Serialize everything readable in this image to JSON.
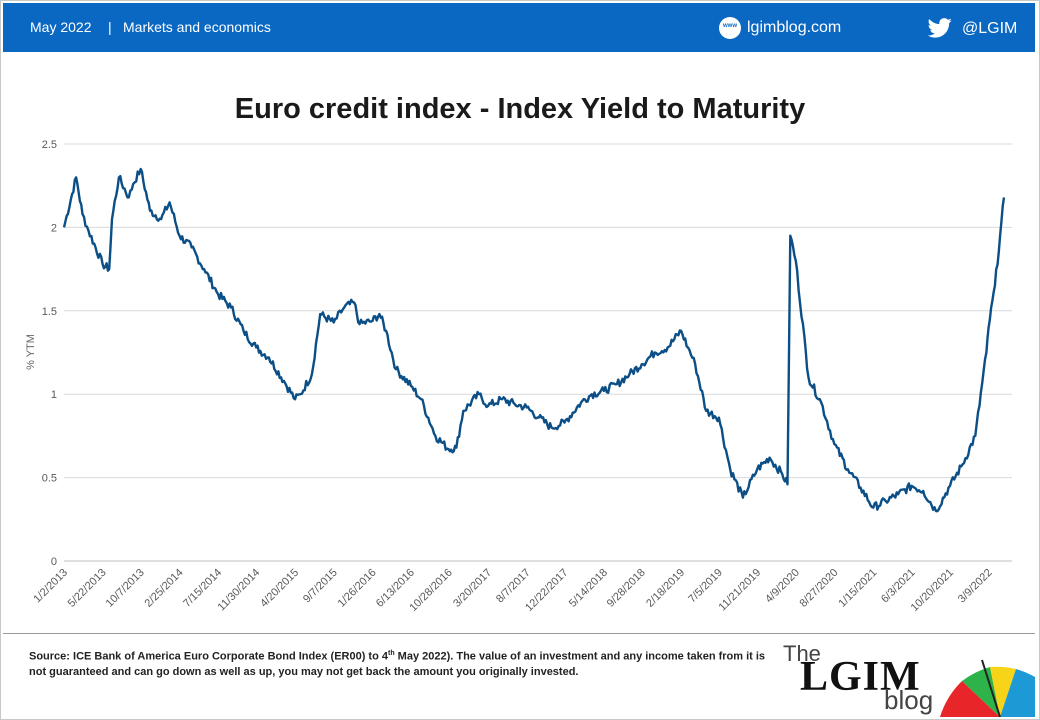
{
  "header": {
    "date": "May 2022",
    "separator": "|",
    "category": "Markets and economics",
    "website": "lgimblog.com",
    "website_icon_text": "www",
    "twitter_handle": "@LGIM"
  },
  "colors": {
    "header_bg": "#0a68c3",
    "series": "#0b4f86",
    "grid": "#d9d9d9"
  },
  "chart_data": {
    "type": "line",
    "title": "Euro credit index - Index Yield to Maturity",
    "ylabel": "% YTM",
    "xlabel": "",
    "ylim": [
      0,
      2.5
    ],
    "yticks": [
      0,
      0.5,
      1,
      1.5,
      2,
      2.5
    ],
    "grid": "horizontal",
    "legend": "none",
    "x_tick_labels": [
      "1/2/2013",
      "5/22/2013",
      "10/7/2013",
      "2/25/2014",
      "7/15/2014",
      "11/30/2014",
      "4/20/2015",
      "9/7/2015",
      "1/26/2016",
      "6/13/2016",
      "10/28/2016",
      "3/20/2017",
      "8/7/2017",
      "12/22/2017",
      "5/14/2018",
      "9/28/2018",
      "2/18/2019",
      "7/5/2019",
      "11/21/2019",
      "4/9/2020",
      "8/27/2020",
      "1/15/2021",
      "6/3/2021",
      "10/20/2021",
      "3/9/2022"
    ],
    "series": [
      {
        "x": [
          "2013-01-02",
          "2013-02-15",
          "2013-03-10",
          "2013-04-01",
          "2013-05-22",
          "2013-06-15",
          "2013-06-25",
          "2013-07-20",
          "2013-08-25",
          "2013-09-10",
          "2013-10-07",
          "2013-11-10",
          "2013-12-20",
          "2014-01-20",
          "2014-02-25",
          "2014-04-10",
          "2014-05-25",
          "2014-07-15",
          "2014-08-31",
          "2014-10-15",
          "2014-11-30",
          "2015-01-15",
          "2015-03-10",
          "2015-04-20",
          "2015-05-10",
          "2015-06-20",
          "2015-07-20",
          "2015-09-07",
          "2015-10-15",
          "2015-11-20",
          "2015-12-10",
          "2016-01-26",
          "2016-02-20",
          "2016-03-15",
          "2016-04-20",
          "2016-06-13",
          "2016-07-20",
          "2016-09-10",
          "2016-10-28",
          "2016-11-25",
          "2016-12-20",
          "2017-02-15",
          "2017-03-20",
          "2017-05-10",
          "2017-06-25",
          "2017-08-07",
          "2017-09-20",
          "2017-11-05",
          "2017-12-22",
          "2018-02-20",
          "2018-03-31",
          "2018-05-14",
          "2018-06-30",
          "2018-08-15",
          "2018-09-28",
          "2018-11-15",
          "2018-12-31",
          "2019-02-18",
          "2019-03-15",
          "2019-04-10",
          "2019-05-20",
          "2019-07-05",
          "2019-08-15",
          "2019-09-30",
          "2019-11-21",
          "2020-01-05",
          "2020-02-20",
          "2020-03-10",
          "2020-03-20",
          "2020-04-09",
          "2020-05-25",
          "2020-07-10",
          "2020-08-27",
          "2020-10-15",
          "2020-11-30",
          "2021-01-15",
          "2021-03-01",
          "2021-04-15",
          "2021-06-03",
          "2021-07-15",
          "2021-08-30",
          "2021-10-20",
          "2021-12-05",
          "2022-01-20",
          "2022-03-01",
          "2022-03-09",
          "2022-04-01",
          "2022-04-20",
          "2022-05-04"
        ],
        "values": [
          2.0,
          2.3,
          2.08,
          1.98,
          1.78,
          1.75,
          2.05,
          2.3,
          2.18,
          2.26,
          2.35,
          2.1,
          2.05,
          2.15,
          1.95,
          1.88,
          1.75,
          1.6,
          1.52,
          1.38,
          1.28,
          1.22,
          1.08,
          0.97,
          1.0,
          1.12,
          1.48,
          1.43,
          1.52,
          1.55,
          1.42,
          1.44,
          1.48,
          1.38,
          1.15,
          1.05,
          0.97,
          0.75,
          0.67,
          0.68,
          0.9,
          1.0,
          0.93,
          0.97,
          0.94,
          0.92,
          0.86,
          0.8,
          0.83,
          0.95,
          1.0,
          1.02,
          1.06,
          1.12,
          1.18,
          1.25,
          1.28,
          1.38,
          1.28,
          1.18,
          0.9,
          0.86,
          0.55,
          0.38,
          0.55,
          0.62,
          0.52,
          0.46,
          1.95,
          1.8,
          1.1,
          0.95,
          0.7,
          0.55,
          0.44,
          0.32,
          0.36,
          0.4,
          0.45,
          0.42,
          0.3,
          0.45,
          0.58,
          0.75,
          1.25,
          1.4,
          1.65,
          1.95,
          2.18
        ]
      }
    ]
  },
  "footer": {
    "source_pre": "Source: ICE Bank of America Euro Corporate Bond Index (ER00) to 4",
    "source_sup": "th",
    "source_post": " May 2022). The value of an investment and any income taken from it is not guaranteed and can go down as well as up, you may not get back the amount you originally invested.",
    "logo_the": "The",
    "logo_main": "LGIM",
    "logo_blog": "blog"
  }
}
